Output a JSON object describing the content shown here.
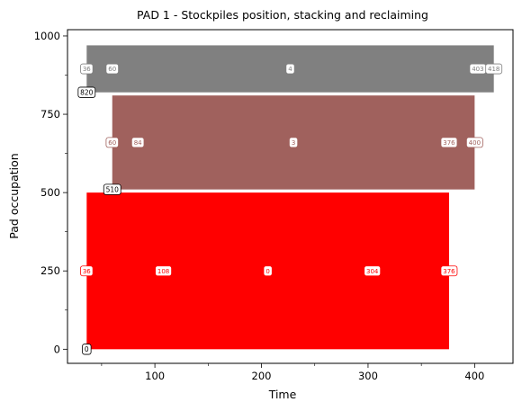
{
  "chart_data": {
    "type": "bar",
    "title": "PAD 1 - Stockpiles position, stacking and reclaiming",
    "xlabel": "Time",
    "ylabel": "Pad occupation",
    "xlim": [
      18,
      436
    ],
    "ylim": [
      -45,
      1020
    ],
    "x_ticks": [
      100,
      200,
      300,
      400
    ],
    "x_minor_ticks": [
      50,
      150,
      250,
      350
    ],
    "y_ticks": [
      0,
      250,
      500,
      750,
      1000
    ],
    "y_minor_ticks": [
      125,
      375,
      625,
      875
    ],
    "grid": false,
    "series": [
      {
        "label_id": "0",
        "color": "#ff0000",
        "x_start": 36,
        "x_end": 376,
        "y_bottom": 0,
        "y_top": 500,
        "start_label": "0",
        "row_y": 250,
        "markers": [
          {
            "x": 36,
            "text": "36"
          },
          {
            "x": 108,
            "text": "108"
          },
          {
            "x": 206,
            "text": "0"
          },
          {
            "x": 304,
            "text": "304"
          },
          {
            "x": 376,
            "text": "376"
          }
        ]
      },
      {
        "label_id": "3",
        "color": "#a0615d",
        "x_start": 60,
        "x_end": 400,
        "y_bottom": 510,
        "y_top": 810,
        "start_label": "510",
        "row_y": 660,
        "markers": [
          {
            "x": 60,
            "text": "60"
          },
          {
            "x": 84,
            "text": "84"
          },
          {
            "x": 230,
            "text": "3"
          },
          {
            "x": 376,
            "text": "376"
          },
          {
            "x": 400,
            "text": "400"
          }
        ]
      },
      {
        "label_id": "4",
        "color": "#808080",
        "x_start": 36,
        "x_end": 418,
        "y_bottom": 820,
        "y_top": 970,
        "start_label": "820",
        "row_y": 895,
        "markers": [
          {
            "x": 36,
            "text": "36"
          },
          {
            "x": 60,
            "text": "60"
          },
          {
            "x": 227,
            "text": "4"
          },
          {
            "x": 403,
            "text": "403"
          },
          {
            "x": 418,
            "text": "418"
          }
        ]
      }
    ]
  }
}
